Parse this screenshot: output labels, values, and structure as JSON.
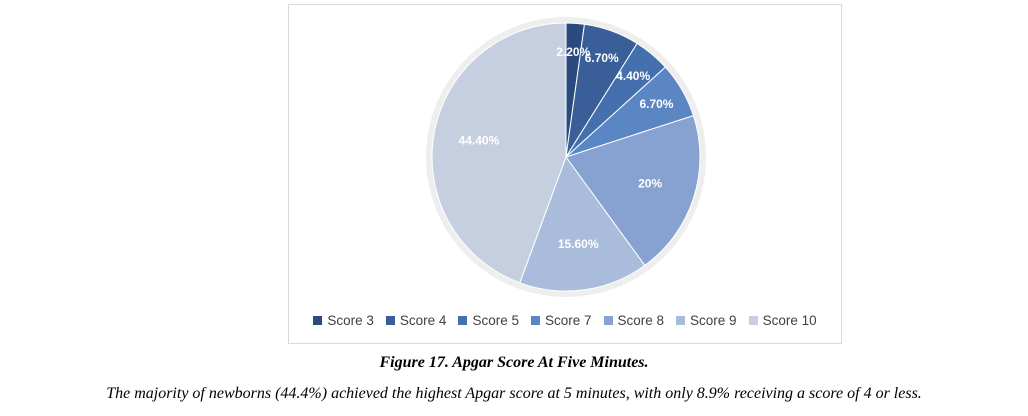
{
  "chart_data": {
    "type": "pie",
    "title": "",
    "categories": [
      "Score 3",
      "Score 4",
      "Score 5",
      "Score 7",
      "Score 8",
      "Score 9",
      "Score 10"
    ],
    "values": [
      2.2,
      6.7,
      4.4,
      6.7,
      20,
      15.6,
      44.4
    ],
    "data_labels": [
      "2.20%",
      "6.70%",
      "4.40%",
      "6.70%",
      "20%",
      "15.60%",
      "44.40%"
    ],
    "colors": [
      "#2b4b7e",
      "#3a5e98",
      "#4470ae",
      "#5a86c4",
      "#87a2d0",
      "#a9bcdb",
      "#c6cfe0"
    ],
    "legend_position": "bottom"
  },
  "figure": {
    "caption": "Figure 17. Apgar Score At Five Minutes.",
    "description": "The majority of newborns (44.4%) achieved the highest Apgar score at 5 minutes, with only 8.9% receiving a score of 4 or less."
  }
}
